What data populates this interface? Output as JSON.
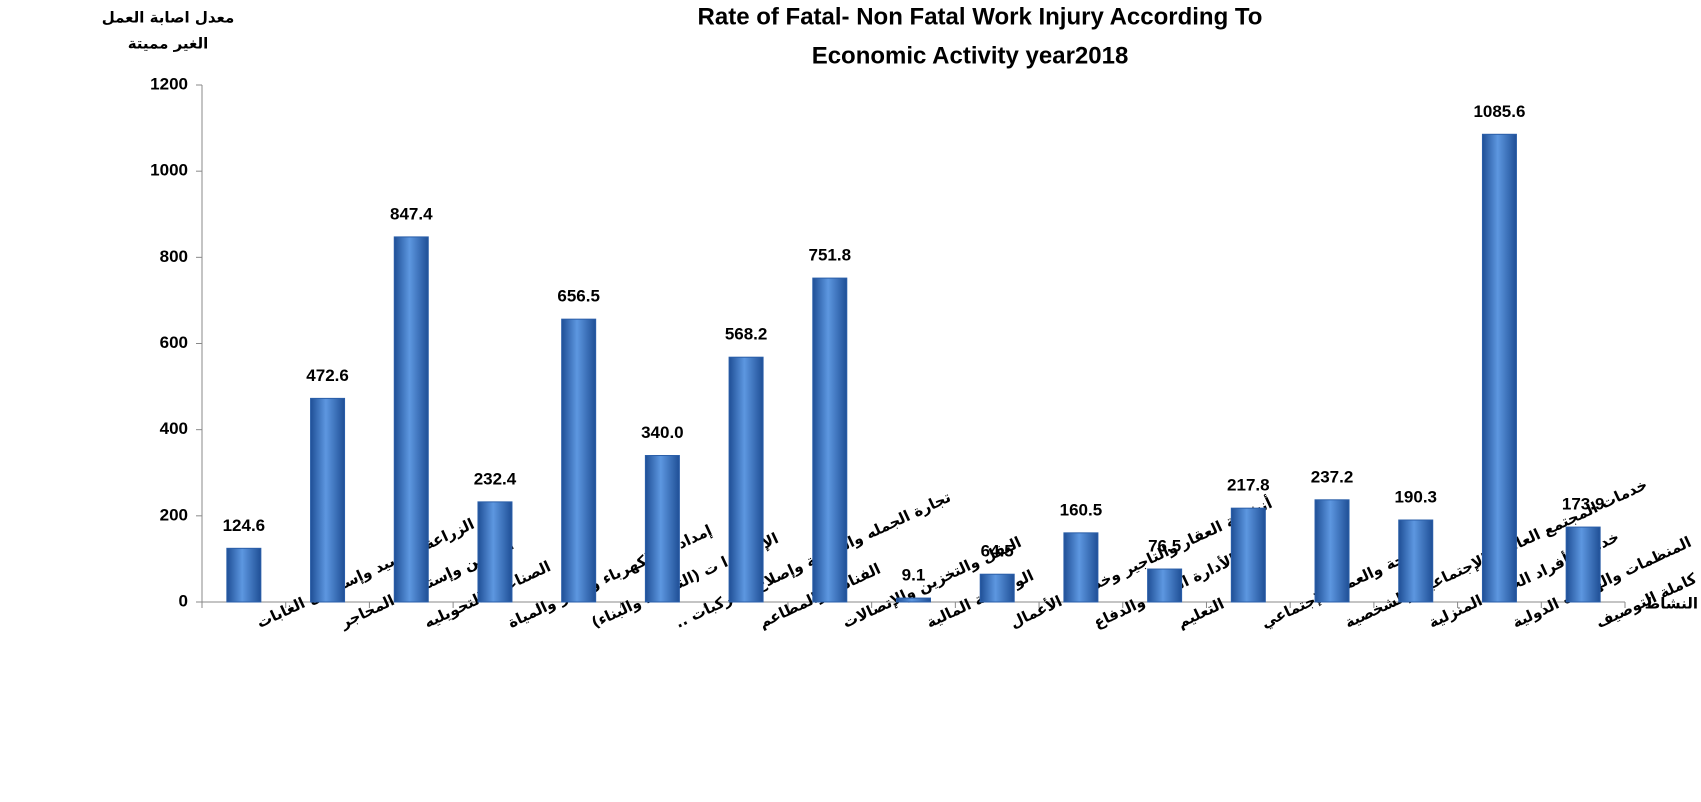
{
  "chart_data": {
    "type": "bar",
    "title": [
      "Rate of Fatal- Non Fatal Work Injury According To",
      "Economic Activity  year2018"
    ],
    "y_label": [
      "معدل اصابة العمل",
      "الغير مميتة"
    ],
    "x_label": "النشاط",
    "categories": [
      "الزراعة والصيد وإستغلال الغابات",
      "التعدين وإستغلال المحاجر",
      "الصناعات التحويليه",
      "إمدادات الكهرباء والغاز والمياة",
      "الإنشاء ا ت (التشييد والبناء)",
      "تجارة الجمله والتجزئة وإصلاح المركبات ..",
      "الفنادق والمطاعم",
      "النقل والتخزين والإتصالات",
      "الوساطة المالية",
      "أنشطة العقار والتاجير وخدمات الأعمال",
      "الأدارة العامة والدفاع",
      "التعليم",
      "الصحة والعمل الإجتماعي",
      "خدمات المجتمع العامة والإجتماعية والشخصية",
      "خدمات أفراد الخدمة المنزلية",
      "المنظمات والهيئات الدولية",
      "أنشطة غير كاملة التوصيف"
    ],
    "values": [
      124.6,
      472.6,
      847.4,
      232.4,
      656.5,
      340,
      568.2,
      751.8,
      9.1,
      64.5,
      160.5,
      76.5,
      217.8,
      237.2,
      190.3,
      1085.6,
      173.9
    ],
    "value_labels": [
      "124.6",
      "472.6",
      "847.4",
      "232.4",
      "656.5",
      "340.0",
      "568.2",
      "751.8",
      "9.1",
      "64.5",
      "160.5",
      "76.5",
      "217.8",
      "237.2",
      "190.3",
      "1085.6",
      "173.9"
    ],
    "color": "#3d77c8",
    "ylim": [
      0,
      1200
    ],
    "yticks": [
      0,
      200,
      400,
      600,
      800,
      1000,
      1200
    ],
    "grid": false
  }
}
